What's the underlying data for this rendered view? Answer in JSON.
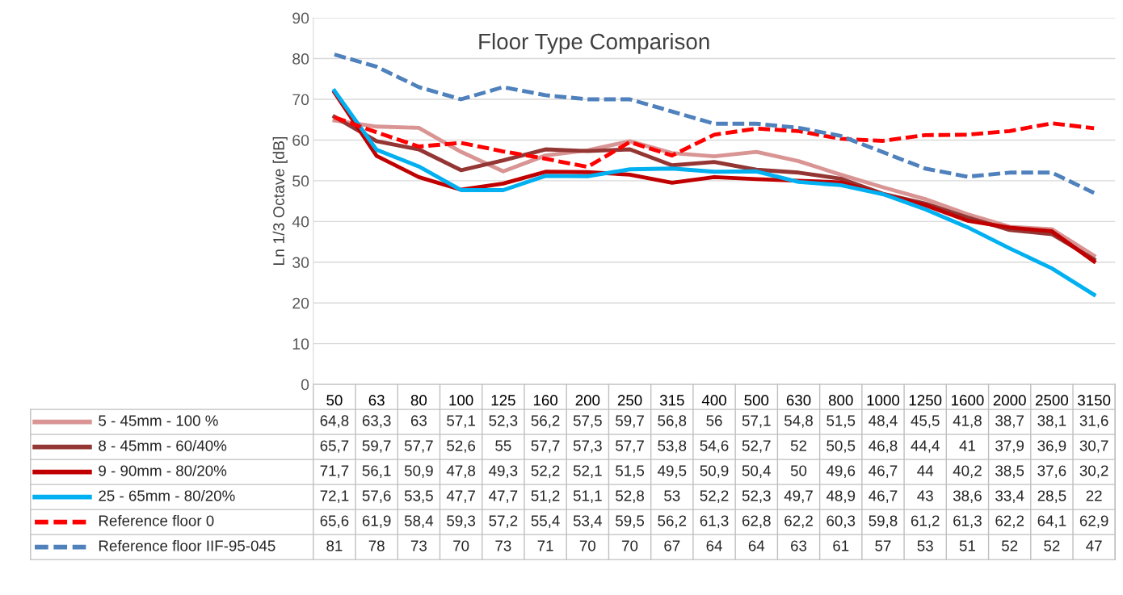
{
  "chart_data": {
    "type": "line",
    "title": "Floor Type Comparison",
    "ylabel": "Ln 1/3 Octave [dB]",
    "categories": [
      "50",
      "63",
      "80",
      "100",
      "125",
      "160",
      "200",
      "250",
      "315",
      "400",
      "500",
      "630",
      "800",
      "1000",
      "1250",
      "1600",
      "2000",
      "2500",
      "3150"
    ],
    "ylim": [
      0,
      90
    ],
    "yticks": [
      0,
      10,
      20,
      30,
      40,
      50,
      60,
      70,
      80,
      90
    ],
    "grid": "y",
    "legend": "bottom",
    "marker": "none",
    "series": [
      {
        "name": "5 - 45mm - 100 %",
        "color": "#d99594",
        "line_style": "solid",
        "values": [
          64.8,
          63.3,
          63,
          57.1,
          52.3,
          56.2,
          57.5,
          59.7,
          56.8,
          56,
          57.1,
          54.8,
          51.5,
          48.4,
          45.5,
          41.8,
          38.7,
          38.1,
          31.6
        ],
        "value_labels": [
          "64,8",
          "63,3",
          "63",
          "57,1",
          "52,3",
          "56,2",
          "57,5",
          "59,7",
          "56,8",
          "56",
          "57,1",
          "54,8",
          "51,5",
          "48,4",
          "45,5",
          "41,8",
          "38,7",
          "38,1",
          "31,6"
        ]
      },
      {
        "name": "8 - 45mm - 60/40%",
        "color": "#943634",
        "line_style": "solid",
        "values": [
          65.7,
          59.7,
          57.7,
          52.6,
          55,
          57.7,
          57.3,
          57.7,
          53.8,
          54.6,
          52.7,
          52,
          50.5,
          46.8,
          44.4,
          41,
          37.9,
          36.9,
          30.7
        ],
        "value_labels": [
          "65,7",
          "59,7",
          "57,7",
          "52,6",
          "55",
          "57,7",
          "57,3",
          "57,7",
          "53,8",
          "54,6",
          "52,7",
          "52",
          "50,5",
          "46,8",
          "44,4",
          "41",
          "37,9",
          "36,9",
          "30,7"
        ]
      },
      {
        "name": "9 - 90mm - 80/20%",
        "color": "#c00000",
        "line_style": "solid",
        "values": [
          71.7,
          56.1,
          50.9,
          47.8,
          49.3,
          52.2,
          52.1,
          51.5,
          49.5,
          50.9,
          50.4,
          50,
          49.6,
          46.7,
          44,
          40.2,
          38.5,
          37.6,
          30.2
        ],
        "value_labels": [
          "71,7",
          "56,1",
          "50,9",
          "47,8",
          "49,3",
          "52,2",
          "52,1",
          "51,5",
          "49,5",
          "50,9",
          "50,4",
          "50",
          "49,6",
          "46,7",
          "44",
          "40,2",
          "38,5",
          "37,6",
          "30,2"
        ]
      },
      {
        "name": "25 - 65mm - 80/20%",
        "color": "#00b0f0",
        "line_style": "solid",
        "values": [
          72.1,
          57.6,
          53.5,
          47.7,
          47.7,
          51.2,
          51.1,
          52.8,
          53,
          52.2,
          52.3,
          49.7,
          48.9,
          46.7,
          43,
          38.6,
          33.4,
          28.5,
          22
        ],
        "value_labels": [
          "72,1",
          "57,6",
          "53,5",
          "47,7",
          "47,7",
          "51,2",
          "51,1",
          "52,8",
          "53",
          "52,2",
          "52,3",
          "49,7",
          "48,9",
          "46,7",
          "43",
          "38,6",
          "33,4",
          "28,5",
          "22"
        ]
      },
      {
        "name": "Reference floor 0",
        "color": "#ff0000",
        "line_style": "dashed",
        "values": [
          65.6,
          61.9,
          58.4,
          59.3,
          57.2,
          55.4,
          53.4,
          59.5,
          56.2,
          61.3,
          62.8,
          62.2,
          60.3,
          59.8,
          61.2,
          61.3,
          62.2,
          64.1,
          62.9
        ],
        "value_labels": [
          "65,6",
          "61,9",
          "58,4",
          "59,3",
          "57,2",
          "55,4",
          "53,4",
          "59,5",
          "56,2",
          "61,3",
          "62,8",
          "62,2",
          "60,3",
          "59,8",
          "61,2",
          "61,3",
          "62,2",
          "64,1",
          "62,9"
        ]
      },
      {
        "name": "Reference floor IIF-95-045",
        "color": "#4f81bd",
        "line_style": "dashed",
        "values": [
          81,
          78,
          73,
          70,
          73,
          71,
          70,
          70,
          67,
          64,
          64,
          63,
          61,
          57,
          53,
          51,
          52,
          52,
          47
        ],
        "value_labels": [
          "81",
          "78",
          "73",
          "70",
          "73",
          "71",
          "70",
          "70",
          "67",
          "64",
          "64",
          "63",
          "61",
          "57",
          "53",
          "51",
          "52",
          "52",
          "47"
        ]
      }
    ]
  }
}
